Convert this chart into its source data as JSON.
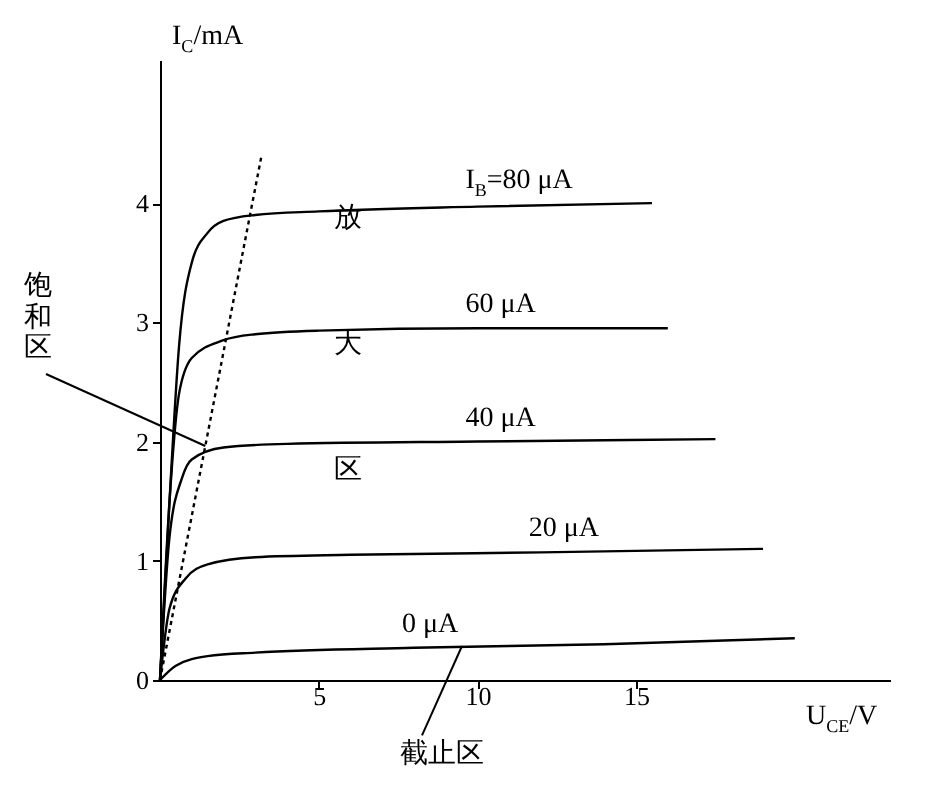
{
  "chart_data": {
    "type": "line",
    "xlabel": "U$_{CE}$/V",
    "ylabel": "I$_{C}$/mA",
    "xlim": [
      0,
      23
    ],
    "ylim": [
      0,
      5.2
    ],
    "xticks": [
      5,
      10,
      15
    ],
    "yticks": [
      0,
      1,
      2,
      3,
      4
    ],
    "grid": false,
    "marker": "none",
    "series": [
      {
        "name": "I$_{B}$=80 μA",
        "color": "#000000",
        "line_style": "solid",
        "x": [
          0,
          0.3,
          0.6,
          1,
          1.5,
          2,
          3,
          5,
          10,
          15.5
        ],
        "values": [
          0,
          1.5,
          2.8,
          3.5,
          3.75,
          3.85,
          3.9,
          3.93,
          3.97,
          4.0
        ]
      },
      {
        "name": "60 μA",
        "color": "#000000",
        "line_style": "solid",
        "x": [
          0,
          0.3,
          0.6,
          1,
          2,
          3,
          5,
          10,
          16
        ],
        "values": [
          0,
          1.5,
          2.4,
          2.7,
          2.85,
          2.9,
          2.93,
          2.95,
          2.95
        ]
      },
      {
        "name": "40 μA",
        "color": "#000000",
        "line_style": "solid",
        "x": [
          0,
          0.3,
          0.7,
          1,
          2,
          4,
          10,
          17.5
        ],
        "values": [
          0,
          1.2,
          1.7,
          1.85,
          1.95,
          1.98,
          2.0,
          2.02
        ]
      },
      {
        "name": "20 μA",
        "color": "#000000",
        "line_style": "solid",
        "x": [
          0,
          0.3,
          0.8,
          1.5,
          3,
          6,
          12,
          19
        ],
        "values": [
          0,
          0.6,
          0.85,
          0.97,
          1.03,
          1.05,
          1.07,
          1.1
        ]
      },
      {
        "name": "0 μA",
        "color": "#000000",
        "line_style": "solid",
        "x": [
          0,
          0.5,
          1.5,
          3,
          8,
          14,
          20
        ],
        "values": [
          0,
          0.12,
          0.2,
          0.23,
          0.27,
          0.3,
          0.35
        ]
      },
      {
        "color": "#000000",
        "line_style": "dotted",
        "x": [
          0,
          3.2
        ],
        "values": [
          0,
          4.4
        ]
      }
    ],
    "annotations": [
      "放",
      "大",
      "区",
      {
        "text": "饱和区",
        "x": 1.45,
        "y": 1.97
      },
      {
        "text": "截止区",
        "x": 9.5,
        "y": 0.28
      }
    ]
  }
}
